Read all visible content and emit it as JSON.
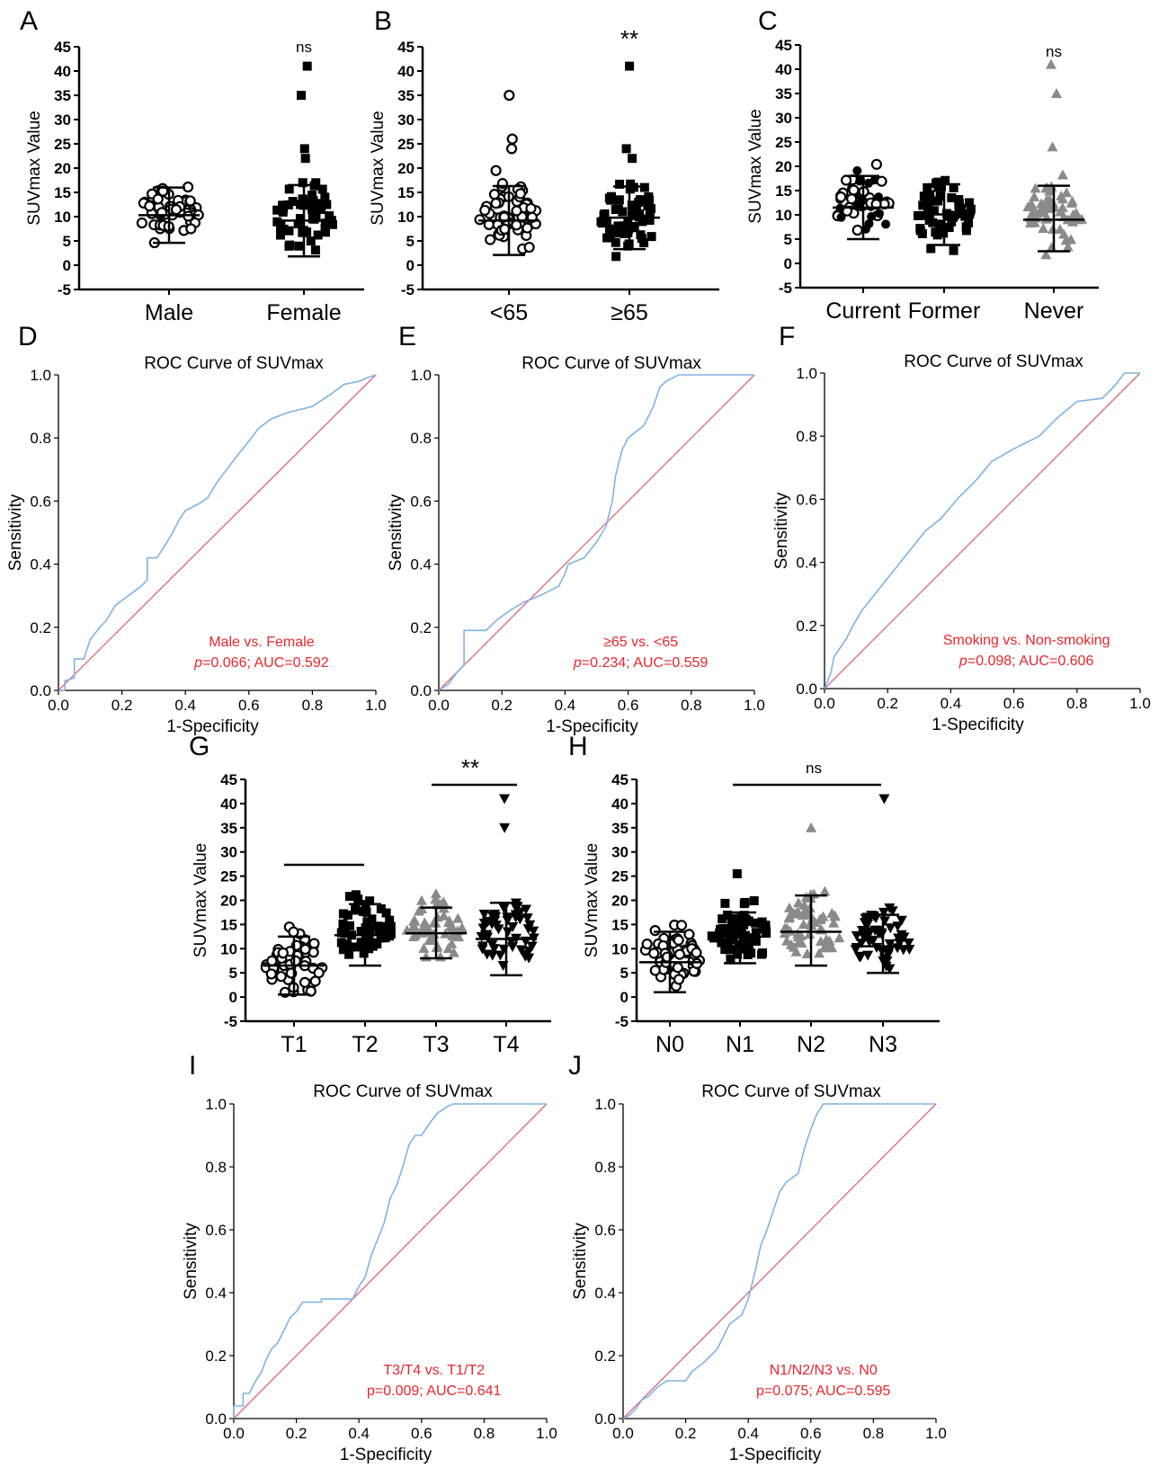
{
  "panels_meta": {
    "colors": {
      "roc_curve": "#7fb2e5",
      "reference": "#e0637a",
      "annotation": "#e8262b",
      "grey_marker": "#8a8a8a"
    }
  },
  "chart_data": [
    {
      "panel": "A",
      "type": "scatter",
      "ylabel": "SUVmax Value",
      "ylim": [
        -5,
        45
      ],
      "yticks": [
        "-5",
        "0",
        "5",
        "10",
        "15",
        "20",
        "25",
        "30",
        "35",
        "40",
        "45"
      ],
      "categories": [
        "Male",
        "Female"
      ],
      "series": [
        {
          "category": "Male",
          "marker": "open-circle",
          "mean": 10.3,
          "sd_low": 4.6,
          "sd_high": 16.0
        },
        {
          "category": "Female",
          "marker": "filled-square",
          "mean": 9.2,
          "sd_low": 1.8,
          "sd_high": 16.5,
          "outliers": [
            41,
            35,
            24,
            22
          ]
        }
      ],
      "significance": "ns"
    },
    {
      "panel": "B",
      "type": "scatter",
      "ylabel": "SUVmax Value",
      "ylim": [
        -5,
        45
      ],
      "yticks": [
        "-5",
        "0",
        "5",
        "10",
        "15",
        "20",
        "25",
        "30",
        "35",
        "40",
        "45"
      ],
      "categories": [
        "<65",
        "≥65"
      ],
      "series": [
        {
          "category": "<65",
          "marker": "open-circle",
          "mean": 9.2,
          "sd_low": 2.1,
          "sd_high": 16.3,
          "outliers": [
            35,
            26,
            24
          ]
        },
        {
          "category": "≥65",
          "marker": "filled-square",
          "mean": 9.8,
          "sd_low": 3.3,
          "sd_high": 16.2,
          "outliers": [
            41,
            24,
            22
          ]
        }
      ],
      "significance": "**"
    },
    {
      "panel": "C",
      "type": "scatter",
      "ylabel": "SUVmax Value",
      "ylim": [
        -5,
        45
      ],
      "yticks": [
        "-5",
        "0",
        "5",
        "10",
        "15",
        "20",
        "25",
        "30",
        "35",
        "40",
        "45"
      ],
      "categories": [
        "Current",
        "Former",
        "Never"
      ],
      "series": [
        {
          "category": "Current",
          "marker": "mixed-circle",
          "mean": 11.5,
          "sd_low": 5.0,
          "sd_high": 18.0
        },
        {
          "category": "Former",
          "marker": "filled-square",
          "mean": 10.1,
          "sd_low": 3.8,
          "sd_high": 16.3
        },
        {
          "category": "Never",
          "marker": "grey-triangle",
          "mean": 9.0,
          "sd_low": 2.5,
          "sd_high": 16.0,
          "outliers": [
            41,
            35,
            24
          ]
        }
      ],
      "significance": "ns"
    },
    {
      "panel": "D",
      "type": "line",
      "title": "ROC Curve of SUVmax",
      "xlabel": "1-Specificity",
      "ylabel": "Sensitivity",
      "xlim": [
        0,
        1
      ],
      "ylim": [
        0,
        1
      ],
      "ticks": [
        "0.0",
        "0.2",
        "0.4",
        "0.6",
        "0.8",
        "1.0"
      ],
      "annotation": {
        "line1": "Male vs. Female",
        "line2_p": "p",
        "line2_rest": "=0.066; AUC=0.592"
      },
      "curve": [
        [
          0,
          0
        ],
        [
          0.02,
          0
        ],
        [
          0.02,
          0.03
        ],
        [
          0.05,
          0.04
        ],
        [
          0.05,
          0.1
        ],
        [
          0.08,
          0.1
        ],
        [
          0.1,
          0.16
        ],
        [
          0.13,
          0.2
        ],
        [
          0.15,
          0.22
        ],
        [
          0.18,
          0.27
        ],
        [
          0.22,
          0.3
        ],
        [
          0.26,
          0.33
        ],
        [
          0.28,
          0.35
        ],
        [
          0.28,
          0.42
        ],
        [
          0.31,
          0.42
        ],
        [
          0.33,
          0.45
        ],
        [
          0.36,
          0.5
        ],
        [
          0.38,
          0.54
        ],
        [
          0.4,
          0.57
        ],
        [
          0.44,
          0.59
        ],
        [
          0.47,
          0.61
        ],
        [
          0.5,
          0.66
        ],
        [
          0.53,
          0.7
        ],
        [
          0.56,
          0.74
        ],
        [
          0.6,
          0.79
        ],
        [
          0.63,
          0.83
        ],
        [
          0.67,
          0.86
        ],
        [
          0.72,
          0.88
        ],
        [
          0.8,
          0.9
        ],
        [
          0.86,
          0.94
        ],
        [
          0.9,
          0.97
        ],
        [
          0.95,
          0.98
        ],
        [
          0.97,
          0.99
        ],
        [
          1,
          1
        ]
      ]
    },
    {
      "panel": "E",
      "type": "line",
      "title": "ROC Curve of SUVmax",
      "xlabel": "1-Specificity",
      "ylabel": "Sensitivity",
      "xlim": [
        0,
        1
      ],
      "ylim": [
        0,
        1
      ],
      "ticks": [
        "0.0",
        "0.2",
        "0.4",
        "0.6",
        "0.8",
        "1.0"
      ],
      "annotation": {
        "line1": "≥65 vs. <65",
        "line2_p": "p",
        "line2_rest": "=0.234; AUC=0.559"
      },
      "curve": [
        [
          0,
          0
        ],
        [
          0.03,
          0.02
        ],
        [
          0.06,
          0.06
        ],
        [
          0.08,
          0.08
        ],
        [
          0.08,
          0.19
        ],
        [
          0.15,
          0.19
        ],
        [
          0.18,
          0.22
        ],
        [
          0.22,
          0.25
        ],
        [
          0.27,
          0.28
        ],
        [
          0.32,
          0.3
        ],
        [
          0.38,
          0.33
        ],
        [
          0.4,
          0.37
        ],
        [
          0.41,
          0.4
        ],
        [
          0.46,
          0.42
        ],
        [
          0.5,
          0.47
        ],
        [
          0.53,
          0.52
        ],
        [
          0.55,
          0.6
        ],
        [
          0.56,
          0.68
        ],
        [
          0.58,
          0.76
        ],
        [
          0.6,
          0.8
        ],
        [
          0.65,
          0.84
        ],
        [
          0.68,
          0.9
        ],
        [
          0.7,
          0.96
        ],
        [
          0.72,
          0.98
        ],
        [
          0.76,
          1
        ],
        [
          1,
          1
        ]
      ]
    },
    {
      "panel": "F",
      "type": "line",
      "title": "ROC Curve of SUVmax",
      "xlabel": "1-Specificity",
      "ylabel": "Sensitivity",
      "xlim": [
        0,
        1
      ],
      "ylim": [
        0,
        1
      ],
      "ticks": [
        "0.0",
        "0.2",
        "0.4",
        "0.6",
        "0.8",
        "1.0"
      ],
      "annotation": {
        "line1": "Smoking vs. Non-smoking",
        "line2_p": "p",
        "line2_rest": "=0.098; AUC=0.606"
      },
      "curve": [
        [
          0,
          0
        ],
        [
          0.02,
          0.05
        ],
        [
          0.03,
          0.1
        ],
        [
          0.05,
          0.13
        ],
        [
          0.07,
          0.16
        ],
        [
          0.09,
          0.2
        ],
        [
          0.12,
          0.25
        ],
        [
          0.16,
          0.3
        ],
        [
          0.2,
          0.35
        ],
        [
          0.24,
          0.4
        ],
        [
          0.28,
          0.45
        ],
        [
          0.32,
          0.5
        ],
        [
          0.37,
          0.54
        ],
        [
          0.42,
          0.6
        ],
        [
          0.48,
          0.66
        ],
        [
          0.53,
          0.72
        ],
        [
          0.6,
          0.76
        ],
        [
          0.68,
          0.8
        ],
        [
          0.74,
          0.86
        ],
        [
          0.8,
          0.91
        ],
        [
          0.88,
          0.92
        ],
        [
          0.92,
          0.96
        ],
        [
          0.95,
          1
        ],
        [
          1,
          1
        ]
      ]
    },
    {
      "panel": "G",
      "type": "scatter",
      "ylabel": "SUVmax Value",
      "ylim": [
        -5,
        45
      ],
      "yticks": [
        "-5",
        "0",
        "5",
        "10",
        "15",
        "20",
        "25",
        "30",
        "35",
        "40",
        "45"
      ],
      "categories": [
        "T1",
        "T2",
        "T3",
        "T4"
      ],
      "series": [
        {
          "category": "T1",
          "marker": "open-circle",
          "mean": 6.5,
          "sd_low": 0.5,
          "sd_high": 12.5
        },
        {
          "category": "T2",
          "marker": "filled-square",
          "mean": 12.8,
          "sd_low": 6.5,
          "sd_high": 19.2
        },
        {
          "category": "T3",
          "marker": "grey-triangle",
          "mean": 13.2,
          "sd_low": 8.0,
          "sd_high": 18.5
        },
        {
          "category": "T4",
          "marker": "filled-down-triangle",
          "mean": 12.0,
          "sd_low": 4.5,
          "sd_high": 19.5,
          "outliers": [
            41,
            35
          ]
        }
      ],
      "significance": "**"
    },
    {
      "panel": "H",
      "type": "scatter",
      "ylabel": "SUVmax Value",
      "ylim": [
        -5,
        45
      ],
      "yticks": [
        "-5",
        "0",
        "5",
        "10",
        "15",
        "20",
        "25",
        "30",
        "35",
        "40",
        "45"
      ],
      "categories": [
        "N0",
        "N1",
        "N2",
        "N3"
      ],
      "series": [
        {
          "category": "N0",
          "marker": "open-circle",
          "mean": 7.2,
          "sd_low": 1.0,
          "sd_high": 13.5
        },
        {
          "category": "N1",
          "marker": "filled-square",
          "mean": 12.5,
          "sd_low": 7.0,
          "sd_high": 17.5,
          "outliers": [
            25.5
          ]
        },
        {
          "category": "N2",
          "marker": "grey-triangle",
          "mean": 13.5,
          "sd_low": 6.5,
          "sd_high": 21.0,
          "outliers": [
            35
          ]
        },
        {
          "category": "N3",
          "marker": "filled-down-triangle",
          "mean": 10.5,
          "sd_low": 5.0,
          "sd_high": 17.0,
          "outliers": [
            41
          ]
        }
      ],
      "significance": "ns"
    },
    {
      "panel": "I",
      "type": "line",
      "title": "ROC Curve of SUVmax",
      "xlabel": "1-Specificity",
      "ylabel": "Sensitivity",
      "xlim": [
        0,
        1
      ],
      "ylim": [
        0,
        1
      ],
      "ticks": [
        "0.0",
        "0.2",
        "0.4",
        "0.6",
        "0.8",
        "1.0"
      ],
      "annotation": {
        "line1": "T3/T4 vs. T1/T2",
        "line2_p": "",
        "line2_rest": "p=0.009; AUC=0.641"
      },
      "curve": [
        [
          0,
          0
        ],
        [
          0,
          0.04
        ],
        [
          0.03,
          0.04
        ],
        [
          0.03,
          0.08
        ],
        [
          0.05,
          0.08
        ],
        [
          0.07,
          0.12
        ],
        [
          0.09,
          0.15
        ],
        [
          0.1,
          0.18
        ],
        [
          0.12,
          0.22
        ],
        [
          0.14,
          0.24
        ],
        [
          0.16,
          0.28
        ],
        [
          0.18,
          0.32
        ],
        [
          0.2,
          0.34
        ],
        [
          0.22,
          0.37
        ],
        [
          0.28,
          0.37
        ],
        [
          0.28,
          0.38
        ],
        [
          0.38,
          0.38
        ],
        [
          0.4,
          0.42
        ],
        [
          0.42,
          0.45
        ],
        [
          0.44,
          0.52
        ],
        [
          0.46,
          0.57
        ],
        [
          0.48,
          0.62
        ],
        [
          0.5,
          0.7
        ],
        [
          0.52,
          0.74
        ],
        [
          0.54,
          0.8
        ],
        [
          0.56,
          0.87
        ],
        [
          0.58,
          0.9
        ],
        [
          0.6,
          0.9
        ],
        [
          0.62,
          0.93
        ],
        [
          0.65,
          0.97
        ],
        [
          0.68,
          0.99
        ],
        [
          0.7,
          1
        ],
        [
          1,
          1
        ]
      ]
    },
    {
      "panel": "J",
      "type": "line",
      "title": "ROC Curve of SUVmax",
      "xlabel": "1-Specificity",
      "ylabel": "Sensitivity",
      "xlim": [
        0,
        1
      ],
      "ylim": [
        0,
        1
      ],
      "ticks": [
        "0.0",
        "0.2",
        "0.4",
        "0.6",
        "0.8",
        "1.0"
      ],
      "annotation": {
        "line1": "N1/N2/N3 vs. N0",
        "line2_p": "",
        "line2_rest": "p=0.075; AUC=0.595"
      },
      "curve": [
        [
          0,
          0
        ],
        [
          0.02,
          0.01
        ],
        [
          0.04,
          0.03
        ],
        [
          0.06,
          0.06
        ],
        [
          0.08,
          0.07
        ],
        [
          0.11,
          0.1
        ],
        [
          0.14,
          0.12
        ],
        [
          0.2,
          0.12
        ],
        [
          0.22,
          0.15
        ],
        [
          0.26,
          0.18
        ],
        [
          0.3,
          0.22
        ],
        [
          0.32,
          0.26
        ],
        [
          0.34,
          0.3
        ],
        [
          0.38,
          0.33
        ],
        [
          0.4,
          0.38
        ],
        [
          0.42,
          0.46
        ],
        [
          0.44,
          0.55
        ],
        [
          0.46,
          0.6
        ],
        [
          0.48,
          0.66
        ],
        [
          0.5,
          0.72
        ],
        [
          0.52,
          0.75
        ],
        [
          0.56,
          0.78
        ],
        [
          0.58,
          0.86
        ],
        [
          0.6,
          0.92
        ],
        [
          0.62,
          0.97
        ],
        [
          0.64,
          1
        ],
        [
          1,
          1
        ]
      ]
    }
  ]
}
